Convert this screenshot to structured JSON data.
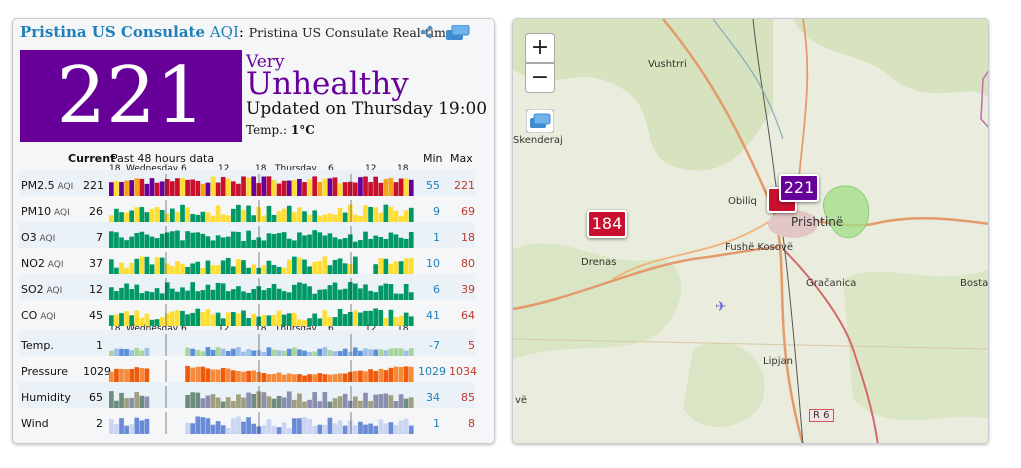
{
  "header": {
    "station": "Pristina US Consulate",
    "aqi_label": "AQI",
    "colon": ":",
    "realtime": "Pristina US Consulate Real-time"
  },
  "current": {
    "aqi": "221",
    "level_line1": "Very",
    "level_line2": "Unhealthy",
    "updated": "Updated on Thursday 19:00",
    "temp_label": "Temp.:",
    "temp_value": "1°C",
    "color": "#660099"
  },
  "table": {
    "col_current": "Current",
    "col_past": "Past 48 hours data",
    "col_min": "Min",
    "col_max": "Max",
    "timeline": [
      "18",
      "Wednesday",
      "6",
      "12",
      "18",
      "Thursday",
      "6",
      "12",
      "18"
    ],
    "rows": [
      {
        "name": "PM2.5",
        "unit": "AQI",
        "value": "221",
        "min": "55",
        "max": "221"
      },
      {
        "name": "PM10",
        "unit": "AQI",
        "value": "26",
        "min": "9",
        "max": "69"
      },
      {
        "name": "O3",
        "unit": "AQI",
        "value": "7",
        "min": "1",
        "max": "18"
      },
      {
        "name": "NO2",
        "unit": "AQI",
        "value": "37",
        "min": "10",
        "max": "80"
      },
      {
        "name": "SO2",
        "unit": "AQI",
        "value": "12",
        "min": "6",
        "max": "39"
      },
      {
        "name": "CO",
        "unit": "AQI",
        "value": "45",
        "min": "41",
        "max": "64"
      },
      {
        "name": "Temp.",
        "unit": "",
        "value": "1",
        "min": "-7",
        "max": "5"
      },
      {
        "name": "Pressure",
        "unit": "",
        "value": "1029",
        "min": "1029",
        "max": "1034"
      },
      {
        "name": "Humidity",
        "unit": "",
        "value": "65",
        "min": "34",
        "max": "85"
      },
      {
        "name": "Wind",
        "unit": "",
        "value": "2",
        "min": "1",
        "max": "8"
      }
    ]
  },
  "map": {
    "zoom_in": "+",
    "zoom_out": "−",
    "places": [
      "Vushtrri",
      "Obiliq",
      "Prishtinë",
      "Fushë Kosovë",
      "Drenas",
      "Gračanica",
      "Bosta",
      "Lipjan",
      "Skenderaj",
      "R 6",
      "vë"
    ],
    "markers": [
      {
        "value": "184",
        "color": "#c8102e"
      },
      {
        "value": "221",
        "color": "#660099"
      }
    ]
  }
}
